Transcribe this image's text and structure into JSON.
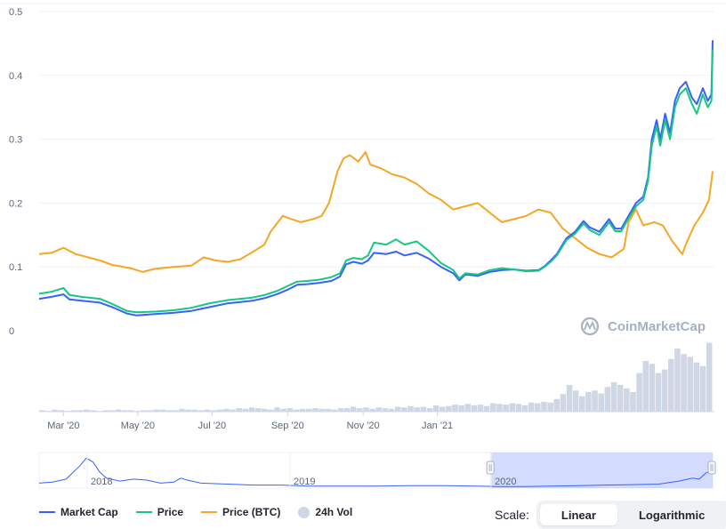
{
  "chart_data": {
    "type": "line",
    "watermark": "CoinMarketCap",
    "y_ticks": [
      "0.5",
      "0.4",
      "0.3",
      "0.2",
      "0.1",
      "0"
    ],
    "ylim": [
      0,
      0.5
    ],
    "x_ticks": [
      "Mar '20",
      "May '20",
      "Jul '20",
      "Sep '20",
      "Nov '20",
      "Jan '21"
    ],
    "navigator_ticks": [
      "2018",
      "2019",
      "2020"
    ],
    "grid": true,
    "series": [
      {
        "name": "Market Cap",
        "color": "#3861fb",
        "points": [
          [
            0,
            0.05
          ],
          [
            10,
            0.053
          ],
          [
            20,
            0.057
          ],
          [
            25,
            0.049
          ],
          [
            35,
            0.047
          ],
          [
            50,
            0.044
          ],
          [
            60,
            0.037
          ],
          [
            72,
            0.027
          ],
          [
            80,
            0.024
          ],
          [
            95,
            0.026
          ],
          [
            110,
            0.028
          ],
          [
            125,
            0.031
          ],
          [
            140,
            0.037
          ],
          [
            155,
            0.043
          ],
          [
            165,
            0.045
          ],
          [
            175,
            0.047
          ],
          [
            185,
            0.051
          ],
          [
            195,
            0.057
          ],
          [
            205,
            0.065
          ],
          [
            212,
            0.072
          ],
          [
            220,
            0.073
          ],
          [
            230,
            0.075
          ],
          [
            240,
            0.078
          ],
          [
            247,
            0.085
          ],
          [
            252,
            0.104
          ],
          [
            258,
            0.108
          ],
          [
            265,
            0.105
          ],
          [
            270,
            0.11
          ],
          [
            275,
            0.122
          ],
          [
            285,
            0.12
          ],
          [
            293,
            0.124
          ],
          [
            300,
            0.118
          ],
          [
            310,
            0.122
          ],
          [
            320,
            0.113
          ],
          [
            330,
            0.1
          ],
          [
            340,
            0.09
          ],
          [
            345,
            0.079
          ],
          [
            350,
            0.088
          ],
          [
            360,
            0.086
          ],
          [
            370,
            0.092
          ],
          [
            380,
            0.095
          ],
          [
            390,
            0.096
          ],
          [
            400,
            0.094
          ],
          [
            410,
            0.095
          ],
          [
            415,
            0.101
          ],
          [
            420,
            0.11
          ],
          [
            425,
            0.12
          ],
          [
            433,
            0.145
          ],
          [
            440,
            0.155
          ],
          [
            447,
            0.172
          ],
          [
            452,
            0.162
          ],
          [
            460,
            0.155
          ],
          [
            468,
            0.175
          ],
          [
            473,
            0.16
          ],
          [
            478,
            0.16
          ],
          [
            484,
            0.18
          ],
          [
            490,
            0.2
          ],
          [
            496,
            0.21
          ],
          [
            500,
            0.24
          ],
          [
            503,
            0.3
          ],
          [
            507,
            0.33
          ],
          [
            510,
            0.3
          ],
          [
            514,
            0.34
          ],
          [
            518,
            0.31
          ],
          [
            522,
            0.36
          ],
          [
            526,
            0.38
          ],
          [
            531,
            0.39
          ],
          [
            536,
            0.365
          ],
          [
            540,
            0.355
          ],
          [
            545,
            0.38
          ],
          [
            549,
            0.36
          ],
          [
            552,
            0.37
          ],
          [
            553,
            0.455
          ]
        ]
      },
      {
        "name": "Price",
        "color": "#16c784",
        "points": [
          [
            0,
            0.058
          ],
          [
            10,
            0.061
          ],
          [
            20,
            0.067
          ],
          [
            25,
            0.056
          ],
          [
            35,
            0.053
          ],
          [
            50,
            0.05
          ],
          [
            60,
            0.042
          ],
          [
            72,
            0.031
          ],
          [
            80,
            0.029
          ],
          [
            95,
            0.03
          ],
          [
            110,
            0.032
          ],
          [
            125,
            0.036
          ],
          [
            140,
            0.043
          ],
          [
            155,
            0.048
          ],
          [
            165,
            0.05
          ],
          [
            175,
            0.052
          ],
          [
            185,
            0.056
          ],
          [
            195,
            0.062
          ],
          [
            205,
            0.071
          ],
          [
            212,
            0.077
          ],
          [
            220,
            0.078
          ],
          [
            230,
            0.08
          ],
          [
            240,
            0.084
          ],
          [
            247,
            0.09
          ],
          [
            252,
            0.11
          ],
          [
            258,
            0.114
          ],
          [
            265,
            0.112
          ],
          [
            270,
            0.118
          ],
          [
            275,
            0.138
          ],
          [
            285,
            0.135
          ],
          [
            293,
            0.143
          ],
          [
            300,
            0.135
          ],
          [
            310,
            0.14
          ],
          [
            320,
            0.125
          ],
          [
            330,
            0.106
          ],
          [
            340,
            0.095
          ],
          [
            345,
            0.082
          ],
          [
            350,
            0.09
          ],
          [
            360,
            0.088
          ],
          [
            370,
            0.095
          ],
          [
            380,
            0.098
          ],
          [
            390,
            0.096
          ],
          [
            400,
            0.093
          ],
          [
            410,
            0.094
          ],
          [
            415,
            0.1
          ],
          [
            420,
            0.108
          ],
          [
            425,
            0.118
          ],
          [
            433,
            0.142
          ],
          [
            440,
            0.152
          ],
          [
            447,
            0.168
          ],
          [
            452,
            0.158
          ],
          [
            460,
            0.15
          ],
          [
            468,
            0.17
          ],
          [
            473,
            0.156
          ],
          [
            478,
            0.156
          ],
          [
            484,
            0.176
          ],
          [
            490,
            0.195
          ],
          [
            496,
            0.205
          ],
          [
            500,
            0.235
          ],
          [
            503,
            0.29
          ],
          [
            507,
            0.32
          ],
          [
            510,
            0.29
          ],
          [
            514,
            0.33
          ],
          [
            518,
            0.3
          ],
          [
            522,
            0.35
          ],
          [
            526,
            0.37
          ],
          [
            531,
            0.38
          ],
          [
            536,
            0.355
          ],
          [
            540,
            0.34
          ],
          [
            545,
            0.37
          ],
          [
            549,
            0.35
          ],
          [
            552,
            0.36
          ],
          [
            553,
            0.44
          ]
        ]
      },
      {
        "name": "Price (BTC)",
        "color": "#f5a623",
        "points": [
          [
            0,
            0.12
          ],
          [
            10,
            0.122
          ],
          [
            20,
            0.13
          ],
          [
            30,
            0.12
          ],
          [
            40,
            0.115
          ],
          [
            50,
            0.11
          ],
          [
            60,
            0.103
          ],
          [
            75,
            0.098
          ],
          [
            85,
            0.092
          ],
          [
            95,
            0.097
          ],
          [
            110,
            0.1
          ],
          [
            125,
            0.102
          ],
          [
            135,
            0.115
          ],
          [
            145,
            0.11
          ],
          [
            155,
            0.108
          ],
          [
            165,
            0.112
          ],
          [
            175,
            0.123
          ],
          [
            185,
            0.135
          ],
          [
            190,
            0.155
          ],
          [
            200,
            0.18
          ],
          [
            207,
            0.175
          ],
          [
            215,
            0.17
          ],
          [
            225,
            0.175
          ],
          [
            232,
            0.18
          ],
          [
            238,
            0.2
          ],
          [
            245,
            0.25
          ],
          [
            250,
            0.27
          ],
          [
            255,
            0.275
          ],
          [
            262,
            0.265
          ],
          [
            268,
            0.28
          ],
          [
            272,
            0.26
          ],
          [
            280,
            0.255
          ],
          [
            290,
            0.245
          ],
          [
            300,
            0.24
          ],
          [
            310,
            0.23
          ],
          [
            320,
            0.215
          ],
          [
            330,
            0.205
          ],
          [
            340,
            0.19
          ],
          [
            350,
            0.195
          ],
          [
            360,
            0.2
          ],
          [
            370,
            0.185
          ],
          [
            380,
            0.17
          ],
          [
            390,
            0.175
          ],
          [
            400,
            0.18
          ],
          [
            410,
            0.19
          ],
          [
            420,
            0.185
          ],
          [
            430,
            0.16
          ],
          [
            440,
            0.145
          ],
          [
            450,
            0.13
          ],
          [
            460,
            0.12
          ],
          [
            470,
            0.115
          ],
          [
            480,
            0.128
          ],
          [
            484,
            0.17
          ],
          [
            490,
            0.19
          ],
          [
            496,
            0.165
          ],
          [
            505,
            0.17
          ],
          [
            512,
            0.165
          ],
          [
            520,
            0.14
          ],
          [
            528,
            0.12
          ],
          [
            532,
            0.14
          ],
          [
            538,
            0.165
          ],
          [
            545,
            0.185
          ],
          [
            550,
            0.205
          ],
          [
            553,
            0.25
          ]
        ]
      }
    ],
    "volume": {
      "name": "24h Vol",
      "color": "#cfd6e4",
      "values": [
        2,
        1,
        3,
        2,
        1,
        2,
        2,
        3,
        2,
        1,
        2,
        2,
        3,
        2,
        2,
        1,
        2,
        2,
        3,
        3,
        2,
        2,
        4,
        3,
        3,
        2,
        3,
        2,
        3,
        4,
        3,
        5,
        4,
        6,
        5,
        4,
        3,
        6,
        4,
        5,
        3,
        4,
        4,
        5,
        4,
        4,
        3,
        5,
        5,
        7,
        5,
        6,
        4,
        6,
        5,
        4,
        7,
        6,
        8,
        6,
        7,
        5,
        9,
        7,
        8,
        10,
        9,
        11,
        9,
        10,
        8,
        12,
        11,
        10,
        12,
        11,
        9,
        13,
        12,
        14,
        13,
        18,
        25,
        38,
        30,
        22,
        28,
        30,
        26,
        35,
        42,
        38,
        33,
        28,
        55,
        72,
        68,
        55,
        60,
        75,
        90,
        82,
        78,
        70,
        65,
        98
      ],
      "scale_max": 100
    },
    "navigator": {
      "points": [
        [
          0,
          0.05
        ],
        [
          2,
          0.06
        ],
        [
          4,
          0.09
        ],
        [
          6,
          0.22
        ],
        [
          7,
          0.3
        ],
        [
          8,
          0.26
        ],
        [
          9,
          0.16
        ],
        [
          10,
          0.1
        ],
        [
          12,
          0.07
        ],
        [
          14,
          0.09
        ],
        [
          16,
          0.08
        ],
        [
          18,
          0.05
        ],
        [
          20,
          0.06
        ],
        [
          21,
          0.1
        ],
        [
          22,
          0.08
        ],
        [
          24,
          0.05
        ],
        [
          28,
          0.04
        ],
        [
          32,
          0.03
        ],
        [
          36,
          0.03
        ],
        [
          40,
          0.02
        ],
        [
          45,
          0.02
        ],
        [
          50,
          0.02
        ],
        [
          55,
          0.025
        ],
        [
          60,
          0.025
        ],
        [
          65,
          0.02
        ],
        [
          68,
          0.015
        ],
        [
          72,
          0.015
        ],
        [
          76,
          0.02
        ],
        [
          80,
          0.025
        ],
        [
          84,
          0.03
        ],
        [
          88,
          0.035
        ],
        [
          92,
          0.04
        ],
        [
          95,
          0.07
        ],
        [
          97,
          0.1
        ],
        [
          98,
          0.09
        ],
        [
          99,
          0.15
        ],
        [
          100,
          0.18
        ]
      ],
      "selection_start": 0.67,
      "selection_end": 1.0
    }
  },
  "legend": {
    "market_cap": "Market Cap",
    "price": "Price",
    "price_btc": "Price (BTC)",
    "volume": "24h Vol"
  },
  "scale": {
    "label": "Scale:",
    "linear": "Linear",
    "logarithmic": "Logarithmic",
    "active": "linear"
  }
}
